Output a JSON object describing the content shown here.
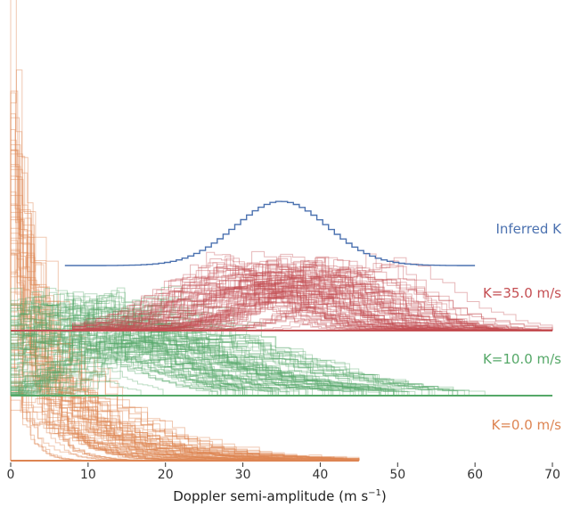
{
  "chart_data": {
    "type": "line",
    "style": "stacked step-histogram posterior samples (ridge plot)",
    "xlabel": "Doppler semi-amplitude (m s",
    "xlabel_sup": "−1",
    "xlabel_close": ")",
    "xlim": [
      0,
      70
    ],
    "x_ticks": [
      0,
      10,
      20,
      30,
      40,
      50,
      60,
      70
    ],
    "grid": false,
    "legend": "none (series labelled inline at right)",
    "series": [
      {
        "name": "K=0.0 m/s",
        "color": "#dd8452",
        "kind": "many sampled posteriors",
        "shape": "exponential-like decay from 0",
        "mode_range": [
          0,
          2
        ],
        "tail_extent": 45,
        "baseline_row": 3
      },
      {
        "name": "K=10.0 m/s",
        "color": "#55a868",
        "kind": "many sampled posteriors",
        "shape": "skewed hump",
        "mode_range": [
          0,
          22
        ],
        "tail_extent": 70,
        "baseline_row": 2
      },
      {
        "name": "K=35.0 m/s",
        "color": "#c44e52",
        "kind": "many sampled posteriors",
        "shape": "bell",
        "mode_range": [
          26,
          50
        ],
        "tail_extent": 70,
        "baseline_row": 1
      },
      {
        "name": "Inferred K",
        "color": "#4c72b0",
        "kind": "single step histogram",
        "shape": "gaussian",
        "center": 35,
        "spread": 6,
        "x_range": [
          7,
          60
        ],
        "baseline_row": 0
      }
    ]
  }
}
